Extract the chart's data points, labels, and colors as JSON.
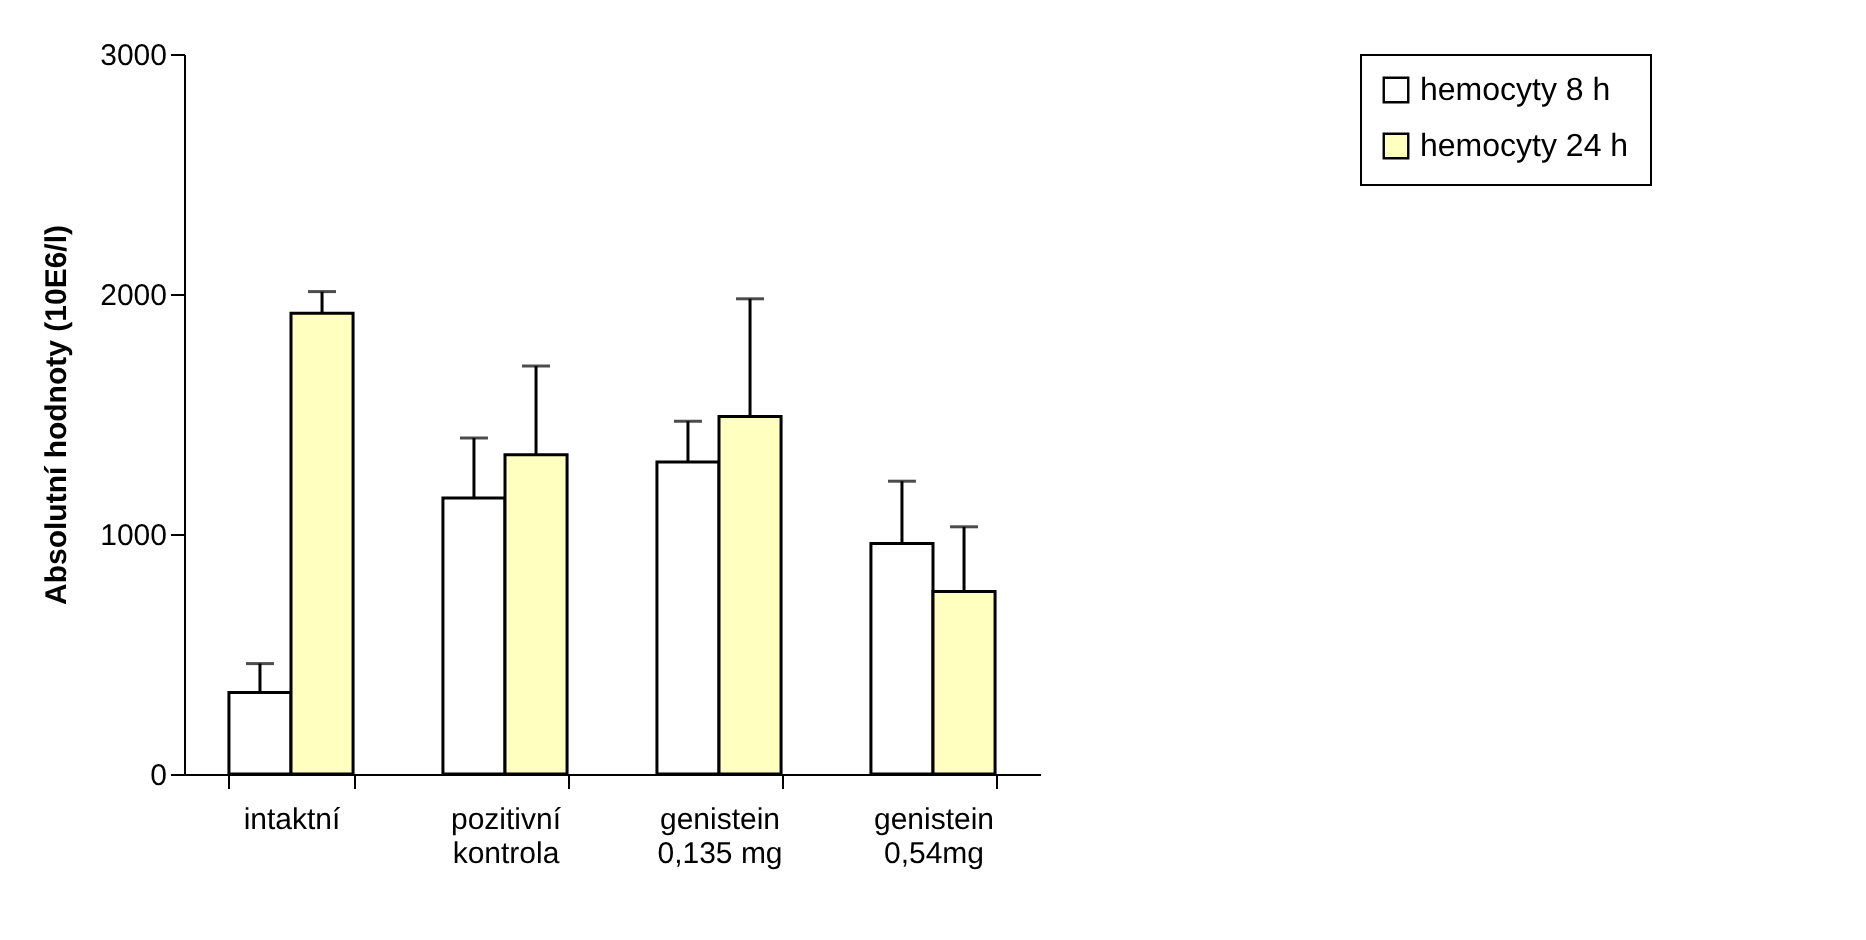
{
  "chart_data": {
    "type": "bar",
    "ylabel": "Absolutní hodnoty (10E6/l)",
    "categories": [
      "intaktní",
      "pozitivní\nkontrola",
      "genistein\n0,135 mg",
      "genistein\n0,54mg"
    ],
    "series": [
      {
        "name": "hemocyty 8 h",
        "color": "#ffffff",
        "values": [
          340,
          1150,
          1300,
          960
        ],
        "errors": [
          [
            340,
            460
          ],
          [
            1150,
            1400
          ],
          [
            1300,
            1470
          ],
          [
            960,
            1220
          ]
        ]
      },
      {
        "name": "hemocyty 24 h",
        "color": "#ffffc0",
        "values": [
          1920,
          1330,
          1490,
          760
        ],
        "errors": [
          [
            1920,
            2010
          ],
          [
            1330,
            1700
          ],
          [
            1490,
            1980
          ],
          [
            760,
            1030
          ]
        ]
      }
    ],
    "ylim": [
      0,
      3000
    ],
    "yticks": [
      0,
      1000,
      2000,
      3000
    ],
    "grid": false,
    "legend": "right"
  }
}
